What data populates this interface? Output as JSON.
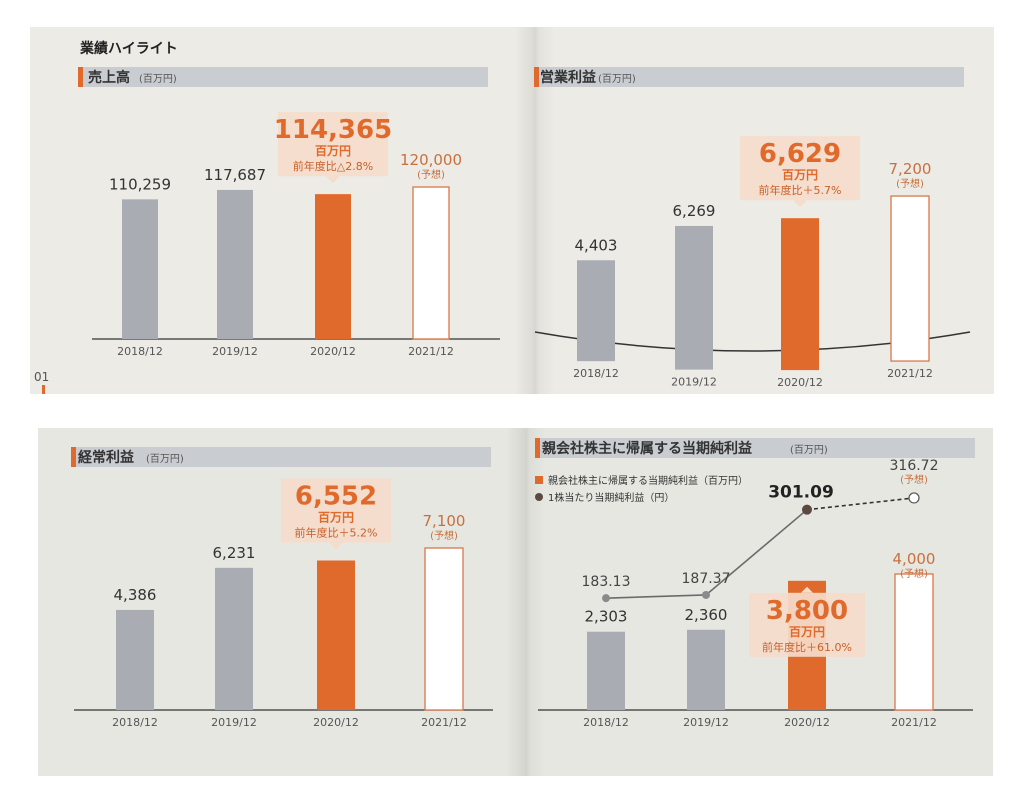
{
  "page_title": "業績ハイライト",
  "page_number": "01",
  "colors": {
    "past": "#a9adb3",
    "current": "#e06a2b",
    "forecast_stroke": "#d9774a",
    "header_band": "#c9cdd1",
    "eps_line": "#6b6b6b",
    "eps_point": "#5a4a42"
  },
  "chart_data": [
    {
      "type": "bar",
      "title": "売上高",
      "unit": "(百万円)",
      "categories": [
        "2018/12",
        "2019/12",
        "2020/12",
        "2021/12"
      ],
      "values": [
        110259,
        117687,
        114365,
        120000
      ],
      "value_labels": [
        "110,259",
        "117,687",
        "114,365",
        "120,000"
      ],
      "forecast_note": "(予想)",
      "highlight": {
        "value": "114,365",
        "unit": "百万円",
        "yoy": "前年度比△2.8%"
      }
    },
    {
      "type": "bar",
      "title": "営業利益",
      "unit": "(百万円)",
      "categories": [
        "2018/12",
        "2019/12",
        "2020/12",
        "2021/12"
      ],
      "values": [
        4403,
        6269,
        6629,
        7200
      ],
      "value_labels": [
        "4,403",
        "6,269",
        "6,629",
        "7,200"
      ],
      "forecast_note": "(予想)",
      "highlight": {
        "value": "6,629",
        "unit": "百万円",
        "yoy": "前年度比＋5.7%"
      }
    },
    {
      "type": "bar",
      "title": "経常利益",
      "unit": "(百万円)",
      "categories": [
        "2018/12",
        "2019/12",
        "2020/12",
        "2021/12"
      ],
      "values": [
        4386,
        6231,
        6552,
        7100
      ],
      "value_labels": [
        "4,386",
        "6,231",
        "6,552",
        "7,100"
      ],
      "forecast_note": "(予想)",
      "highlight": {
        "value": "6,552",
        "unit": "百万円",
        "yoy": "前年度比＋5.2%"
      }
    },
    {
      "type": "bar",
      "title": "親会社株主に帰属する当期純利益",
      "unit": "(百万円)",
      "categories": [
        "2018/12",
        "2019/12",
        "2020/12",
        "2021/12"
      ],
      "values": [
        2303,
        2360,
        3800,
        4000
      ],
      "value_labels": [
        "2,303",
        "2,360",
        "3,800",
        "4,000"
      ],
      "forecast_note": "(予想)",
      "highlight": {
        "value": "3,800",
        "unit": "百万円",
        "yoy": "前年度比＋61.0%"
      },
      "legend": [
        "親会社株主に帰属する当期純利益（百万円）",
        "1株当たり当期純利益（円）"
      ],
      "line_series": {
        "values": [
          183.13,
          187.37,
          301.09,
          316.72
        ],
        "value_labels": [
          "183.13",
          "187.37",
          "301.09",
          "316.72"
        ],
        "forecast_note": "(予想)"
      }
    }
  ]
}
